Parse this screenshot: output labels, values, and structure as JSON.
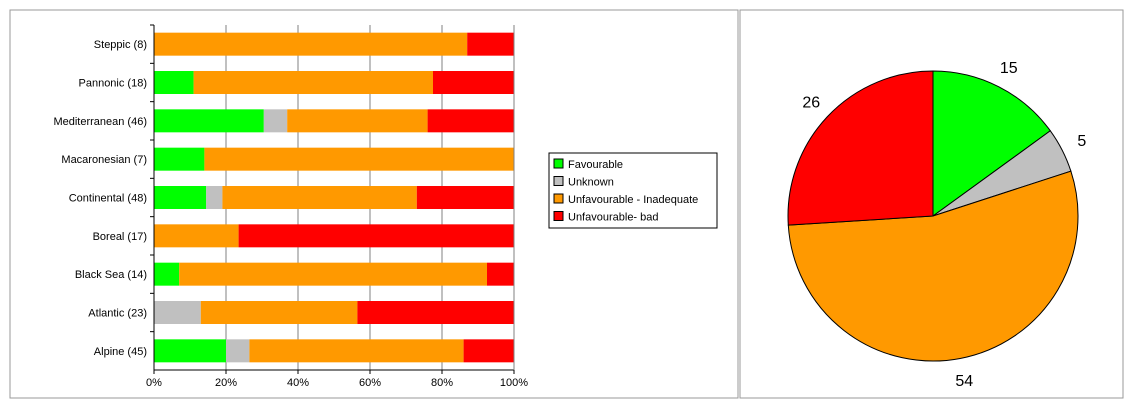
{
  "chart_data": [
    {
      "type": "bar",
      "stacked": true,
      "orientation": "horizontal",
      "percent": true,
      "categories": [
        "Steppic (8)",
        "Pannonic (18)",
        "Mediterranean (46)",
        "Macaronesian (7)",
        "Continental (48)",
        "Boreal (17)",
        "Black Sea (14)",
        "Atlantic (23)",
        "Alpine (45)"
      ],
      "series": [
        {
          "name": "Favourable",
          "color": "#00ff00",
          "values": [
            0,
            11,
            30.5,
            14,
            14.5,
            0,
            7,
            0,
            20
          ]
        },
        {
          "name": "Unknown",
          "color": "#c0c0c0",
          "values": [
            0,
            0,
            6.5,
            0,
            4.5,
            0,
            0,
            13,
            6.5
          ]
        },
        {
          "name": "Unfavourable - Inadequate",
          "color": "#ff9900",
          "values": [
            87,
            66.5,
            39,
            86,
            54,
            23.5,
            85.5,
            43.5,
            59.5
          ]
        },
        {
          "name": "Unfavourable- bad",
          "color": "#ff0000",
          "values": [
            13,
            22.5,
            24,
            0,
            27,
            76.5,
            7.5,
            43.5,
            14
          ]
        }
      ],
      "x_ticks": [
        "0%",
        "20%",
        "40%",
        "60%",
        "80%",
        "100%"
      ],
      "xlim": [
        0,
        100
      ],
      "grid": true,
      "legend": "right"
    },
    {
      "type": "pie",
      "labels": [
        "Favourable",
        "Unknown",
        "Unfavourable - Inadequate",
        "Unfavourable- bad"
      ],
      "values": [
        15,
        5,
        54,
        26
      ],
      "value_labels": [
        "15",
        "5",
        "54",
        "26"
      ],
      "colors": [
        "#00ff00",
        "#c0c0c0",
        "#ff9900",
        "#ff0000"
      ]
    }
  ]
}
